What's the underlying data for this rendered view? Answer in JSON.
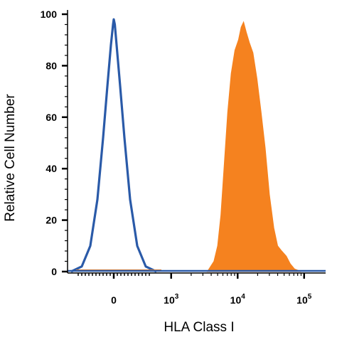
{
  "chart_data": {
    "type": "area",
    "title": "",
    "xlabel": "HLA Class I",
    "ylabel": "Relative Cell Number",
    "x_scale": "biexponential",
    "ylim": [
      0,
      100
    ],
    "yticks": [
      {
        "value": 0,
        "label": "0"
      },
      {
        "value": 20,
        "label": "20"
      },
      {
        "value": 40,
        "label": "40"
      },
      {
        "value": 60,
        "label": "60"
      },
      {
        "value": 80,
        "label": "80"
      },
      {
        "value": 100,
        "label": "100"
      }
    ],
    "xticks": [
      {
        "value": 0,
        "base": "0",
        "exp": ""
      },
      {
        "value": 1000,
        "base": "10",
        "exp": "3"
      },
      {
        "value": 10000,
        "base": "10",
        "exp": "4"
      },
      {
        "value": 100000,
        "base": "10",
        "exp": "5"
      }
    ],
    "series": [
      {
        "style": "outline",
        "color": "#2a5aa8",
        "points": [
          [
            -600,
            0
          ],
          [
            -450,
            2
          ],
          [
            -330,
            10
          ],
          [
            -230,
            28
          ],
          [
            -150,
            52
          ],
          [
            -90,
            72
          ],
          [
            -40,
            88
          ],
          [
            -10,
            96
          ],
          [
            0,
            98
          ],
          [
            15,
            96
          ],
          [
            40,
            88
          ],
          [
            90,
            72
          ],
          [
            150,
            52
          ],
          [
            230,
            28
          ],
          [
            330,
            10
          ],
          [
            450,
            2
          ],
          [
            600,
            0
          ]
        ]
      },
      {
        "style": "filled",
        "color": "#f5821f",
        "points": [
          [
            3500,
            0
          ],
          [
            4400,
            4
          ],
          [
            5000,
            10
          ],
          [
            5600,
            22
          ],
          [
            6300,
            42
          ],
          [
            7100,
            62
          ],
          [
            8000,
            77
          ],
          [
            9100,
            86
          ],
          [
            10300,
            90
          ],
          [
            11300,
            95
          ],
          [
            12300,
            97
          ],
          [
            13500,
            93
          ],
          [
            15000,
            89
          ],
          [
            17000,
            85
          ],
          [
            19500,
            75
          ],
          [
            22500,
            62
          ],
          [
            26000,
            48
          ],
          [
            30000,
            30
          ],
          [
            35000,
            17
          ],
          [
            40000,
            10
          ],
          [
            46000,
            8
          ],
          [
            54000,
            6
          ],
          [
            62000,
            3
          ],
          [
            72000,
            1
          ],
          [
            90000,
            0
          ]
        ]
      }
    ],
    "colors": {
      "outline": "#2a5aa8",
      "fill": "#f5821f",
      "axis": "#000000"
    }
  }
}
